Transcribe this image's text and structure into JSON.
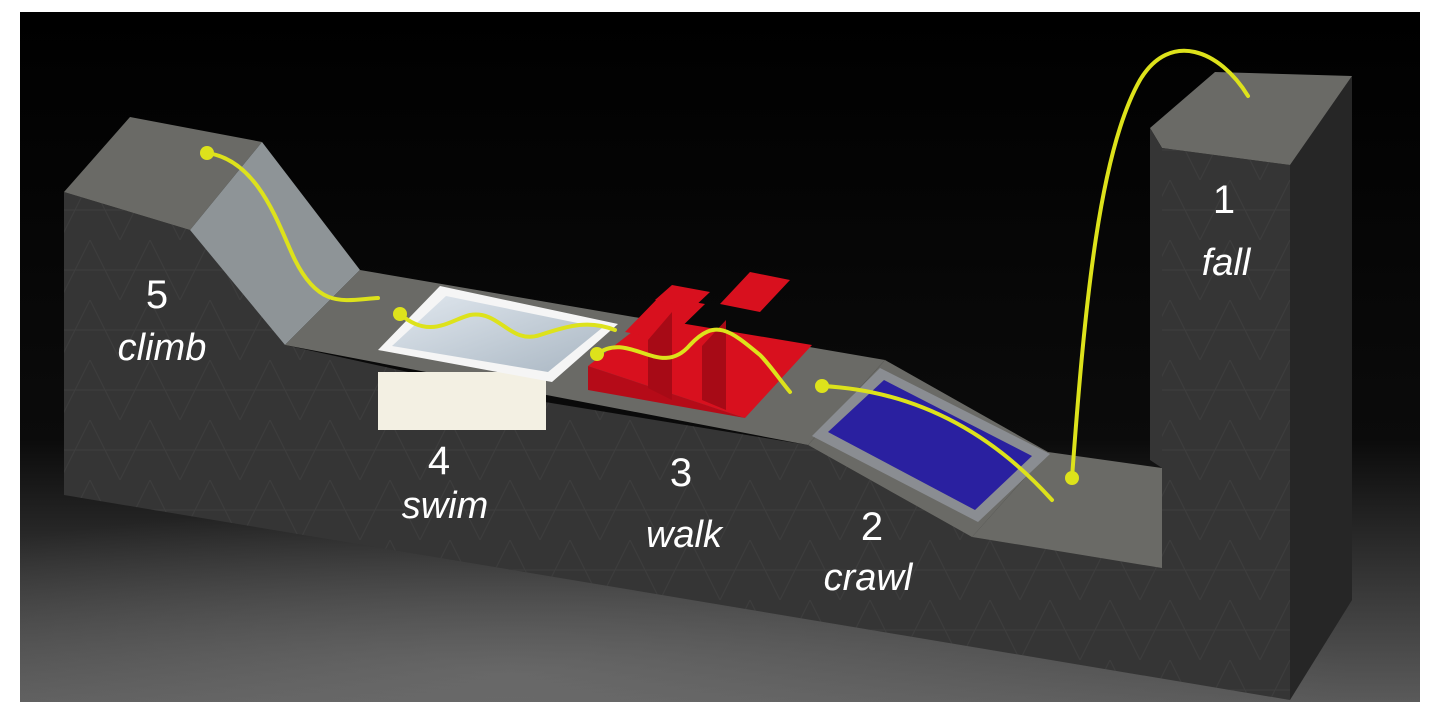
{
  "diagram": {
    "stages": [
      {
        "number": "1",
        "label": "fall"
      },
      {
        "number": "2",
        "label": "crawl"
      },
      {
        "number": "3",
        "label": "walk"
      },
      {
        "number": "4",
        "label": "swim"
      },
      {
        "number": "5",
        "label": "climb"
      }
    ],
    "colors": {
      "background_top": "#000000",
      "background_bottom": "#5a5a5a",
      "wall_face": "#353535",
      "wall_top": "#6a6a66",
      "wall_dark": "#262626",
      "slope": "#8e9497",
      "water": "#c9d3dc",
      "pool_base": "#f3f0e3",
      "steps": "#d8101e",
      "crawl_pad": "#2a20a0",
      "path": "#dde21b"
    }
  }
}
